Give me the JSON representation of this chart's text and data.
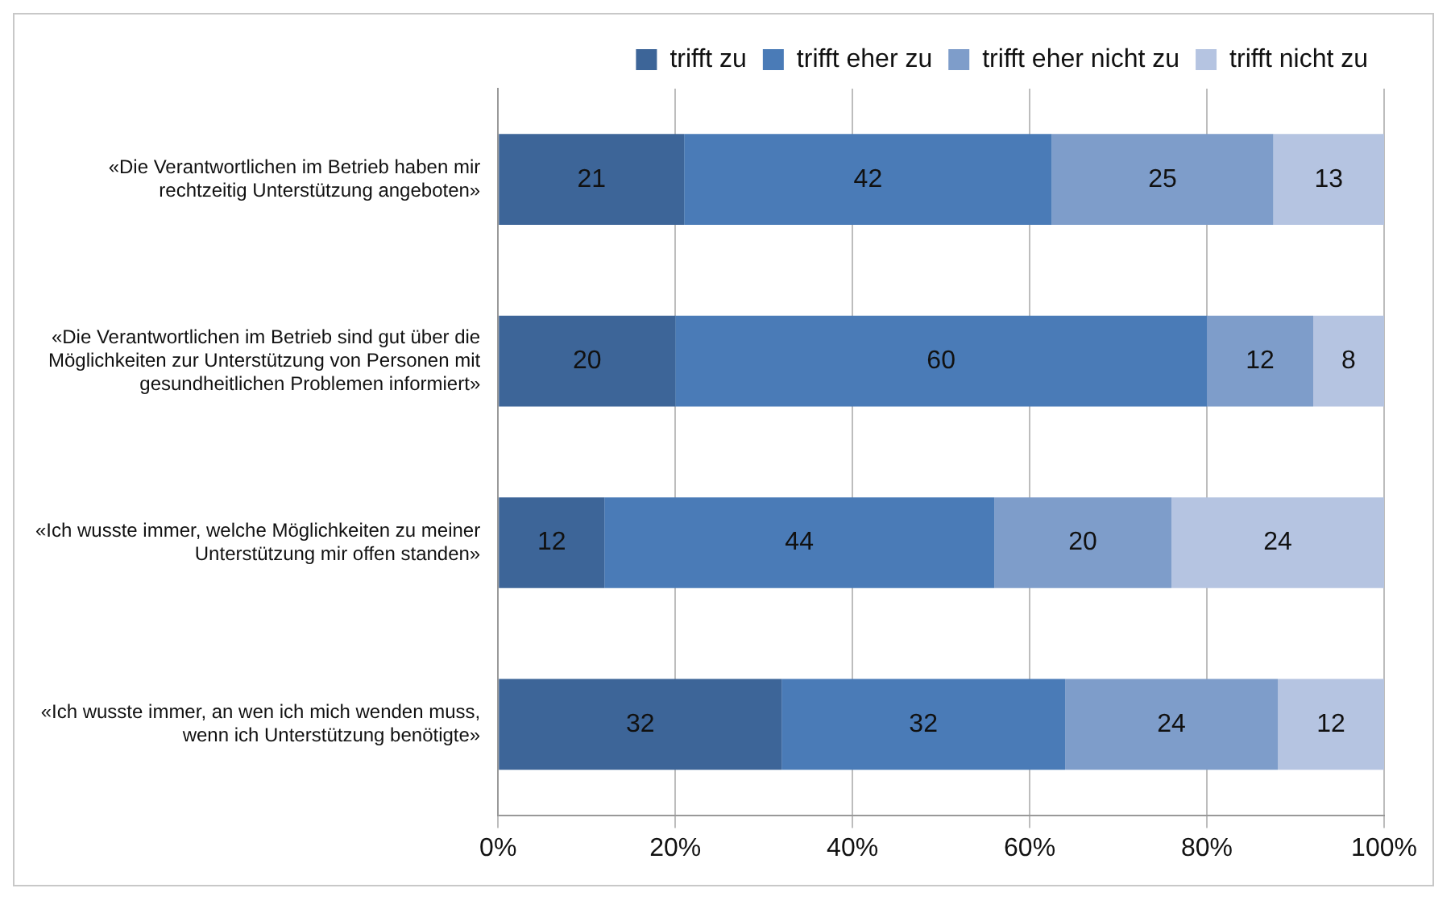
{
  "chart_data": {
    "type": "bar",
    "orientation": "horizontal",
    "stacked": true,
    "categories": [
      "«Die Verantwortlichen im Betrieb haben mir rechtzeitig Unterstützung angeboten»",
      "«Die Verantwortlichen im Betrieb sind gut über die Möglichkeiten zur Unterstützung von Personen mit gesundheitlichen Problemen informiert»",
      "«Ich wusste immer, welche Möglichkeiten zu meiner Unterstützung mir offen standen»",
      "«Ich wusste immer, an wen ich mich wenden muss, wenn ich Unterstützung benötigte»"
    ],
    "series": [
      {
        "name": "trifft zu",
        "color": "#3d6598",
        "values": [
          21,
          20,
          12,
          32
        ],
        "value_labels": [
          "21",
          "20",
          "12",
          "32"
        ]
      },
      {
        "name": "trifft eher zu",
        "color": "#4a7bb7",
        "values": [
          41.5,
          60,
          44,
          32
        ],
        "value_labels": [
          "42",
          "60",
          "44",
          "32"
        ]
      },
      {
        "name": "trifft eher nicht zu",
        "color": "#7e9dca",
        "values": [
          25,
          12,
          20,
          24
        ],
        "value_labels": [
          "25",
          "12",
          "20",
          "24"
        ]
      },
      {
        "name": "trifft nicht zu",
        "color": "#b5c4e1",
        "values": [
          12.5,
          8,
          24,
          12
        ],
        "value_labels": [
          "13",
          "8",
          "24",
          "12"
        ]
      }
    ],
    "xlim": [
      0,
      100
    ],
    "xticks": [
      {
        "value": 0,
        "label": "0%"
      },
      {
        "value": 20,
        "label": "20%"
      },
      {
        "value": 40,
        "label": "40%"
      },
      {
        "value": 60,
        "label": "60%"
      },
      {
        "value": 80,
        "label": "80%"
      },
      {
        "value": 100,
        "label": "100%"
      }
    ],
    "grid": "x",
    "legend": "top right"
  }
}
